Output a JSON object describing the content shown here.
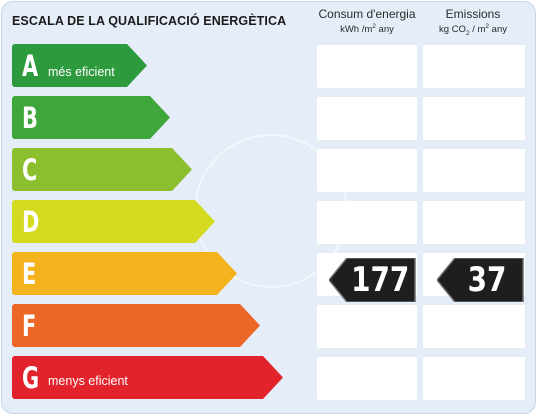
{
  "title": "ESCALA DE LA QUALIFICACIÓ ENERGÈTICA",
  "columns": {
    "consum": {
      "label": "Consum d'energia",
      "unit_base": "kWh /m",
      "unit_sup": "2",
      "unit_tail": " any"
    },
    "emissions": {
      "label": "Emissions",
      "unit_base": "kg CO",
      "unit_sub": "2",
      "unit_mid": " / m",
      "unit_sup": "2",
      "unit_tail": " any"
    }
  },
  "rating_rows": [
    {
      "letter": "A",
      "label": "més eficient",
      "color": "#2e9a3e"
    },
    {
      "letter": "B",
      "label": "",
      "color": "#3ea63a"
    },
    {
      "letter": "C",
      "label": "",
      "color": "#8cbf2d"
    },
    {
      "letter": "D",
      "label": "",
      "color": "#d3da1f"
    },
    {
      "letter": "E",
      "label": "",
      "color": "#f4b21c"
    },
    {
      "letter": "F",
      "label": "",
      "color": "#ec6727"
    },
    {
      "letter": "G",
      "label": "menys eficient",
      "color": "#e2232b"
    }
  ],
  "result": {
    "row_letter": "E",
    "consum_value": "177",
    "emissions_value": "37",
    "badge_color": "#1e1e1e"
  }
}
